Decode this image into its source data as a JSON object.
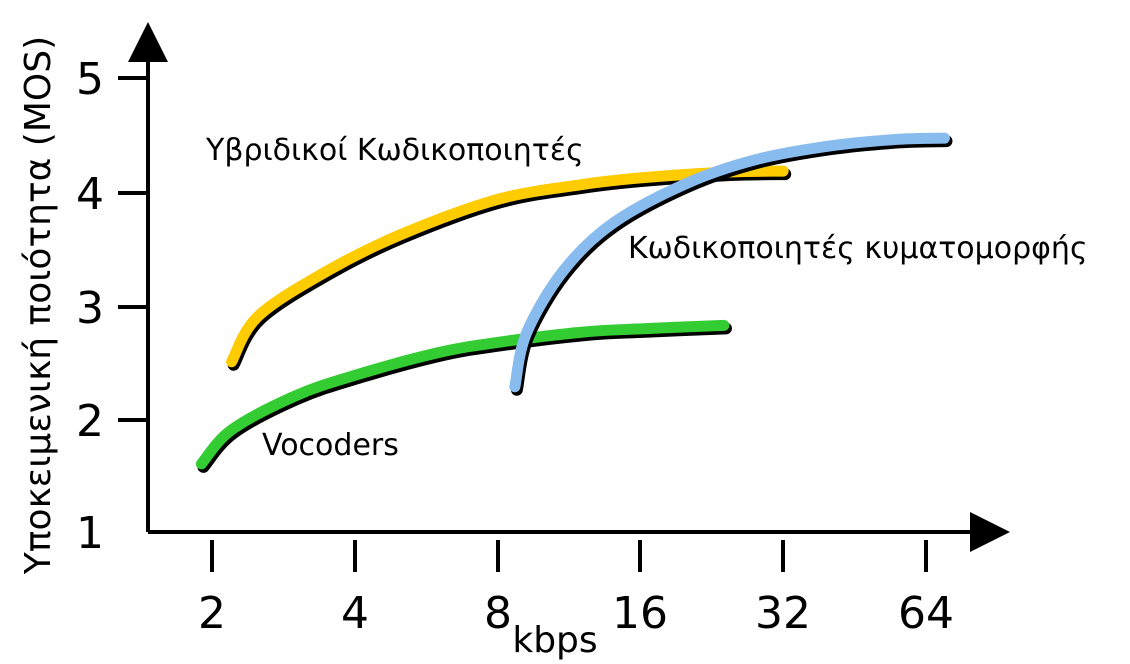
{
  "chart_data": {
    "type": "line",
    "xlabel": "kbps",
    "ylabel": "Υποκειμενική ποιότητα (MOS)",
    "x_scale": "log2",
    "x_ticks": [
      "2",
      "4",
      "8",
      "16",
      "32",
      "64"
    ],
    "y_ticks": [
      "1",
      "2",
      "3",
      "4",
      "5"
    ],
    "ylim": [
      1,
      5
    ],
    "grid": false,
    "series": [
      {
        "name": "Vocoders",
        "color": "#33cc33",
        "x": [
          1.9,
          2.2,
          3,
          4,
          6,
          8,
          12,
          16,
          24
        ],
        "y": [
          1.6,
          1.9,
          2.2,
          2.38,
          2.58,
          2.67,
          2.76,
          2.79,
          2.82
        ]
      },
      {
        "name": "Υβριδικοί Κωδικοποιητές",
        "color": "#ffcc00",
        "x": [
          2.2,
          2.5,
          3.5,
          5,
          8,
          12,
          16,
          24,
          32
        ],
        "y": [
          2.5,
          2.9,
          3.3,
          3.62,
          3.93,
          4.06,
          4.12,
          4.17,
          4.18
        ]
      },
      {
        "name": "Κωδικοποιητές κυματομορφής",
        "color": "#88bbee",
        "x": [
          8.7,
          9.2,
          11,
          14,
          20,
          28,
          40,
          56,
          70
        ],
        "y": [
          2.28,
          2.75,
          3.3,
          3.72,
          4.07,
          4.28,
          4.4,
          4.46,
          4.47
        ]
      }
    ]
  }
}
